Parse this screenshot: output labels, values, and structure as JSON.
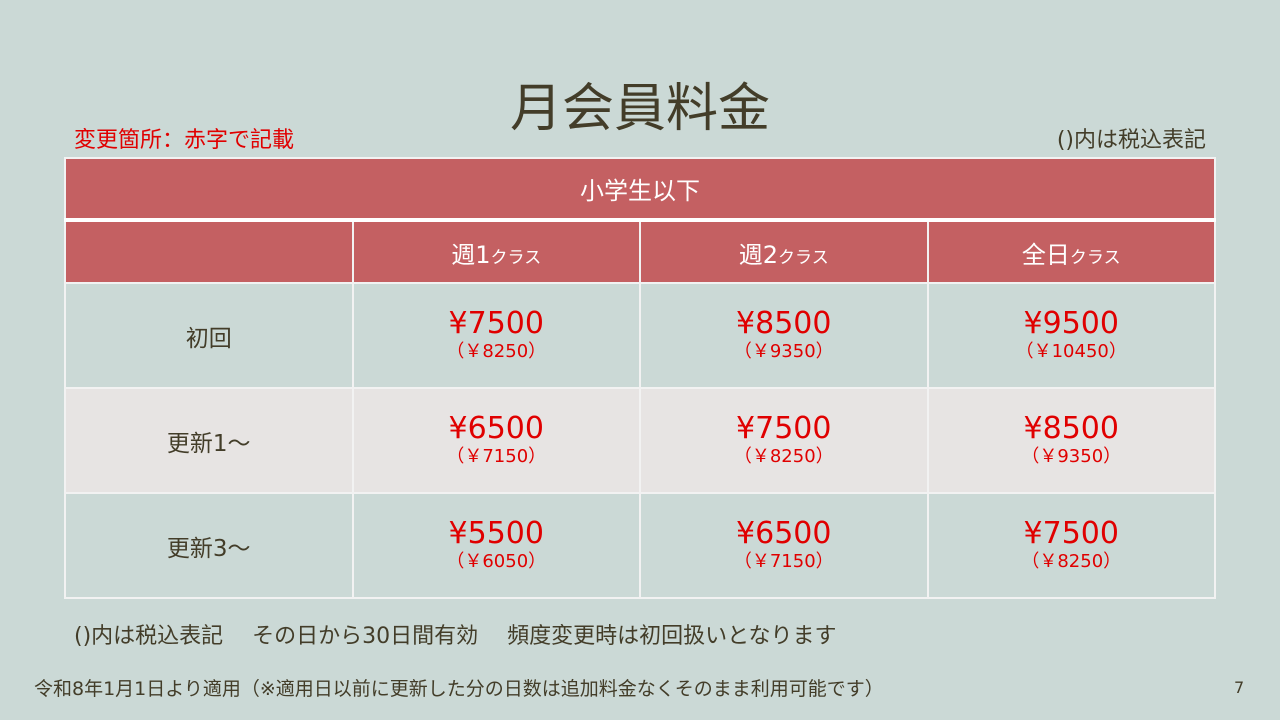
{
  "title": "月会員料金",
  "change_note": "変更箇所：赤字で記載",
  "tax_note_top": "()内は税込表記",
  "table": {
    "group_header": "小学生以下",
    "columns": [
      {
        "main": "週1",
        "suffix": "クラス"
      },
      {
        "main": "週2",
        "suffix": "クラス"
      },
      {
        "main": "全日",
        "suffix": "クラス"
      }
    ],
    "rows": [
      {
        "label": "初回",
        "cells": [
          {
            "price": "¥7500",
            "tax": "（￥8250）"
          },
          {
            "price": "¥8500",
            "tax": "（￥9350）"
          },
          {
            "price": "¥9500",
            "tax": "（￥10450）"
          }
        ]
      },
      {
        "label": "更新1～",
        "cells": [
          {
            "price": "¥6500",
            "tax": "（￥7150）"
          },
          {
            "price": "¥7500",
            "tax": "（￥8250）"
          },
          {
            "price": "¥8500",
            "tax": "（￥9350）"
          }
        ]
      },
      {
        "label": "更新3～",
        "cells": [
          {
            "price": "¥5500",
            "tax": "（￥6050）"
          },
          {
            "price": "¥6500",
            "tax": "（￥7150）"
          },
          {
            "price": "¥7500",
            "tax": "（￥8250）"
          }
        ]
      }
    ]
  },
  "footer_line1": "()内は税込表記　 その日から30日間有効　 頻度変更時は初回扱いとなります",
  "footer_line2": "令和8年1月1日より適用（※適用日以前に更新した分の日数は追加料金なくそのまま利用可能です）",
  "page_number": "7",
  "colors": {
    "header": "#c46062",
    "background": "#cbd9d6",
    "alt_row": "#e7e4e3",
    "changed_text": "#e00000"
  }
}
